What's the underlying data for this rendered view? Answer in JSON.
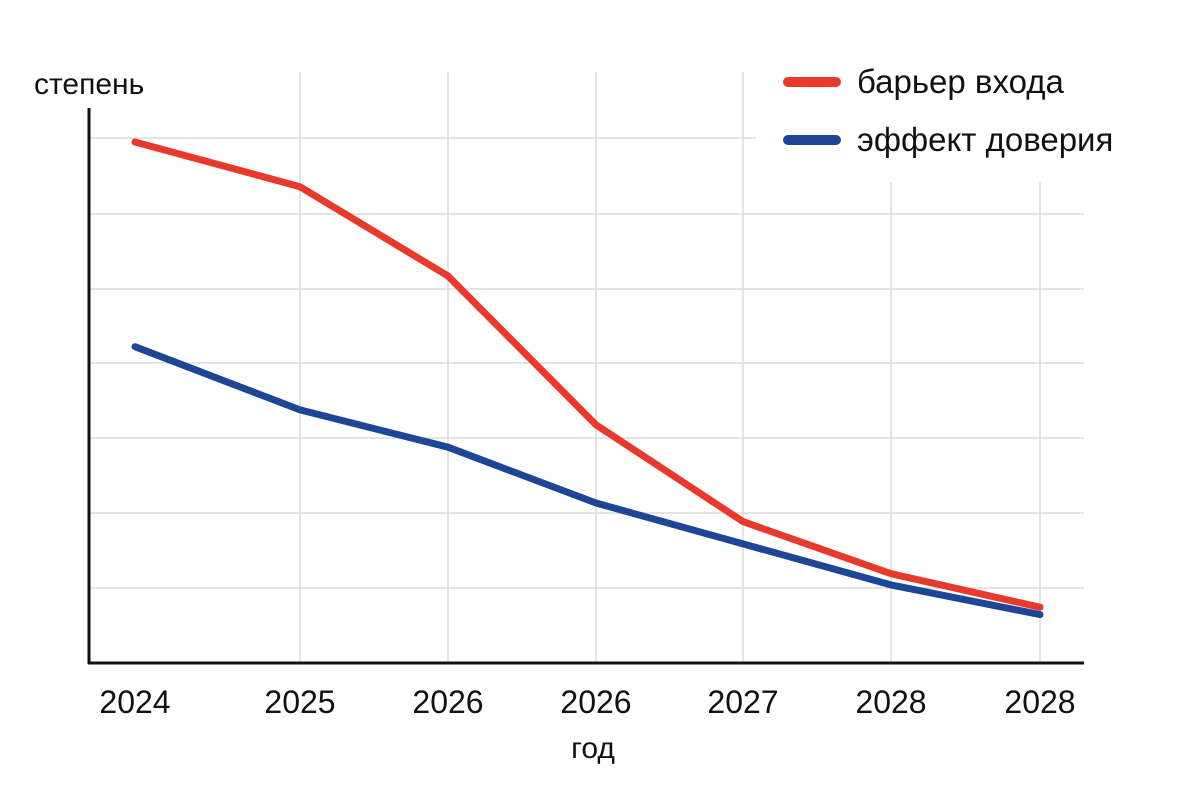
{
  "chart_data": {
    "type": "line",
    "ylabel": "степень",
    "xlabel": "год",
    "categories": [
      "2024",
      "2025",
      "2026",
      "2026",
      "2027",
      "2028",
      "2028"
    ],
    "ylim": [
      0,
      7.4
    ],
    "series": [
      {
        "name": "барьер входа",
        "color": "#e8392a",
        "values": [
          7.0,
          6.4,
          5.2,
          3.2,
          1.9,
          1.2,
          0.75
        ]
      },
      {
        "name": "эффект доверия",
        "color": "#1e4696",
        "values": [
          4.25,
          3.4,
          2.9,
          2.15,
          1.6,
          1.05,
          0.65
        ]
      }
    ],
    "grid": true,
    "legend_position": "top-right"
  }
}
